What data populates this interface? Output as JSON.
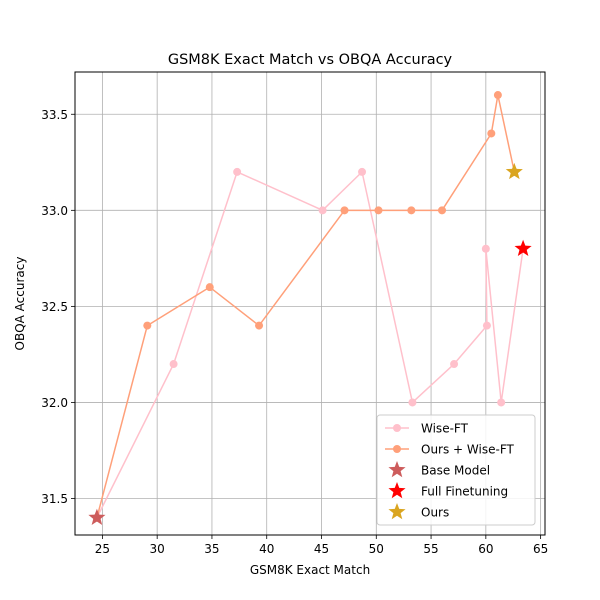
{
  "chart_data": {
    "type": "scatter",
    "title": "GSM8K Exact Match vs OBQA Accuracy",
    "xlabel": "GSM8K Exact Match",
    "ylabel": "OBQA Accuracy",
    "xlim": [
      22.5,
      65.4
    ],
    "ylim": [
      31.31,
      33.72
    ],
    "xticks": [
      25,
      30,
      35,
      40,
      45,
      50,
      55,
      60,
      65
    ],
    "yticks": [
      31.5,
      32.0,
      32.5,
      33.0,
      33.5
    ],
    "xtick_labels": [
      "25",
      "30",
      "35",
      "40",
      "45",
      "50",
      "55",
      "60",
      "65"
    ],
    "ytick_labels": [
      "31.5",
      "32.0",
      "32.5",
      "33.0",
      "33.5"
    ],
    "grid": true,
    "legend_position": "lower-right",
    "series": [
      {
        "name": "Wise-FT",
        "kind": "line-marker",
        "color": "#ffc0cb",
        "x": [
          24.5,
          31.5,
          37.3,
          45.1,
          48.7,
          53.3,
          57.1,
          60.1,
          60.0,
          61.4,
          63.4
        ],
        "y": [
          31.4,
          32.2,
          33.2,
          33.0,
          33.2,
          32.0,
          32.2,
          32.4,
          32.8,
          32.0,
          32.8
        ]
      },
      {
        "name": "Ours + Wise-FT",
        "kind": "line-marker",
        "color": "#ffa07a",
        "x": [
          24.5,
          29.1,
          34.8,
          39.3,
          47.1,
          50.2,
          53.2,
          56.0,
          60.5,
          61.1,
          62.6
        ],
        "y": [
          31.4,
          32.4,
          32.6,
          32.4,
          33.0,
          33.0,
          33.0,
          33.0,
          33.4,
          33.6,
          33.2
        ]
      },
      {
        "name": "Base Model",
        "kind": "star",
        "color": "#cd5c5c",
        "x": [
          24.5
        ],
        "y": [
          31.4
        ]
      },
      {
        "name": "Full Finetuning",
        "kind": "star",
        "color": "#ff0000",
        "x": [
          63.4
        ],
        "y": [
          32.8
        ]
      },
      {
        "name": "Ours",
        "kind": "star",
        "color": "#daa520",
        "x": [
          62.6
        ],
        "y": [
          33.2
        ]
      }
    ]
  }
}
